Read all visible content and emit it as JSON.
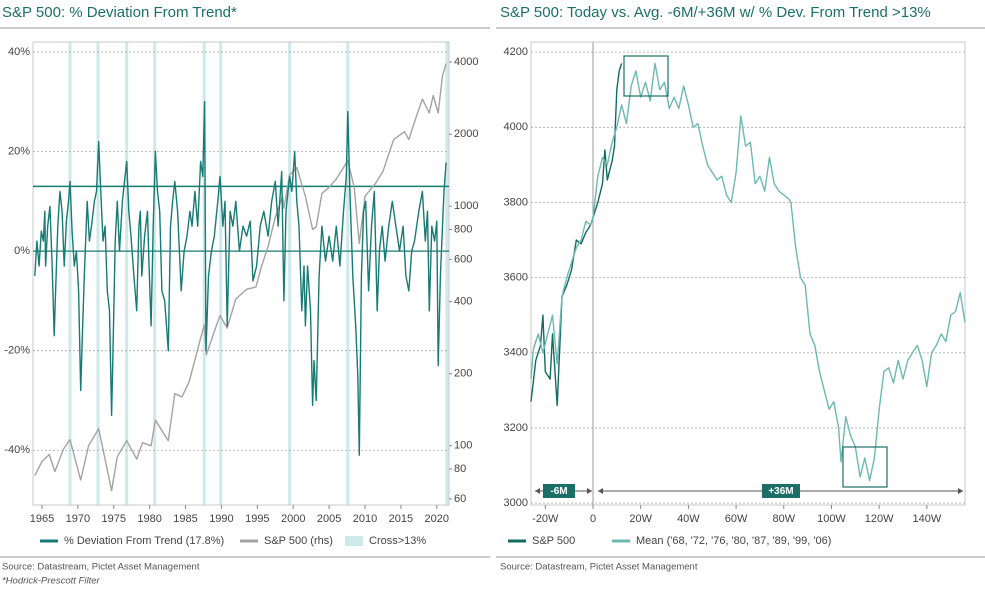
{
  "chart_data": [
    {
      "type": "line",
      "title": "S&P 500: % Deviation From Trend*",
      "xlim": [
        1963.75,
        2021.7
      ],
      "xticks": [
        1965,
        1970,
        1975,
        1980,
        1985,
        1990,
        1995,
        2000,
        2005,
        2010,
        2015,
        2020
      ],
      "ylim": [
        -51,
        42
      ],
      "yticks": [
        {
          "value": -40,
          "label": "-40%"
        },
        {
          "value": -20,
          "label": "-20%"
        },
        {
          "value": 0,
          "label": "0%"
        },
        {
          "value": 20,
          "label": "20%"
        },
        {
          "value": 40,
          "label": "40%"
        }
      ],
      "y2lim": [
        56.6,
        4850
      ],
      "y2log": true,
      "y2ticks": [
        60,
        80,
        100,
        200,
        400,
        600,
        800,
        1000,
        2000,
        4000
      ],
      "grid": true,
      "threshold": 13,
      "bands": {
        "name": "Cross>13%",
        "color": "#cfe9ea",
        "x": [
          1968.9,
          1972.8,
          1976.8,
          1980.7,
          1987.6,
          1989.9,
          1999.5,
          2007.6,
          2021.4
        ]
      },
      "series": [
        {
          "name": "% Deviation From Trend (17.8%)",
          "color": "#167b73",
          "x": [
            1964.0,
            1964.3,
            1964.6,
            1964.9,
            1965.2,
            1965.4,
            1965.5,
            1965.8,
            1966.1,
            1966.4,
            1966.7,
            1966.9,
            1967.2,
            1967.5,
            1967.8,
            1968.1,
            1968.4,
            1968.7,
            1968.9,
            1969.2,
            1969.5,
            1969.8,
            1970.1,
            1970.4,
            1970.6,
            1970.9,
            1971.3,
            1971.6,
            1971.9,
            1972.3,
            1972.6,
            1972.9,
            1973.2,
            1973.5,
            1973.8,
            1974.1,
            1974.4,
            1974.7,
            1974.9,
            1975.2,
            1975.5,
            1975.8,
            1976.2,
            1976.5,
            1976.8,
            1977.1,
            1977.4,
            1977.8,
            1978.2,
            1978.5,
            1978.7,
            1978.9,
            1979.3,
            1979.7,
            1979.9,
            1980.2,
            1980.5,
            1980.8,
            1981.1,
            1981.4,
            1981.7,
            1982.1,
            1982.6,
            1982.9,
            1983.2,
            1983.5,
            1983.9,
            1984.4,
            1984.8,
            1985.2,
            1985.6,
            1985.9,
            1986.3,
            1986.7,
            1987.1,
            1987.4,
            1987.65,
            1987.85,
            1988.2,
            1988.6,
            1989.0,
            1989.5,
            1989.8,
            1990.2,
            1990.5,
            1990.8,
            1991.2,
            1991.6,
            1992.0,
            1992.5,
            1993.0,
            1993.5,
            1994.0,
            1994.4,
            1994.9,
            1995.4,
            1995.9,
            1996.5,
            1997.0,
            1997.5,
            1997.9,
            1998.4,
            1998.7,
            1999.0,
            1999.5,
            1999.8,
            2000.2,
            2000.5,
            2000.8,
            2001.2,
            2001.5,
            2001.7,
            2002.0,
            2002.4,
            2002.7,
            2002.9,
            2003.2,
            2003.6,
            2004.0,
            2004.5,
            2005.0,
            2005.5,
            2006.0,
            2006.5,
            2007.0,
            2007.4,
            2007.6,
            2007.9,
            2008.3,
            2008.7,
            2009.0,
            2009.2,
            2009.5,
            2009.8,
            2010.1,
            2010.5,
            2010.9,
            2011.3,
            2011.7,
            2012.0,
            2012.4,
            2012.8,
            2013.3,
            2013.8,
            2014.3,
            2014.8,
            2015.3,
            2015.7,
            2016.1,
            2016.5,
            2016.9,
            2017.5,
            2018.0,
            2018.4,
            2018.7,
            2018.95,
            2019.3,
            2019.7,
            2020.0,
            2020.2,
            2020.5,
            2020.8,
            2021.0,
            2021.3
          ],
          "values": [
            -5,
            2,
            -3,
            4,
            2,
            8,
            -3,
            5,
            9,
            -2,
            -17,
            -8,
            5,
            12,
            8,
            -3,
            6,
            10,
            14,
            4,
            -3,
            0,
            -8,
            -28,
            -18,
            -5,
            10,
            2,
            5,
            10,
            12,
            22,
            12,
            2,
            5,
            -8,
            -12,
            -33,
            -20,
            2,
            10,
            0,
            10,
            14,
            18,
            8,
            3,
            -5,
            -12,
            5,
            8,
            -5,
            3,
            8,
            -2,
            -15,
            5,
            20,
            12,
            8,
            -8,
            -10,
            -20,
            5,
            10,
            14,
            8,
            -8,
            0,
            3,
            8,
            5,
            12,
            5,
            18,
            15,
            30,
            -20,
            -5,
            0,
            3,
            10,
            15,
            5,
            10,
            -15,
            8,
            5,
            10,
            0,
            5,
            3,
            6,
            -6,
            -3,
            5,
            8,
            3,
            10,
            14,
            5,
            16,
            -10,
            8,
            15,
            12,
            20,
            10,
            5,
            -12,
            -3,
            -15,
            -3,
            -12,
            -31,
            -22,
            -30,
            -5,
            5,
            -2,
            3,
            -2,
            5,
            -3,
            8,
            15,
            28,
            12,
            -5,
            -15,
            -25,
            -41,
            -5,
            8,
            10,
            -8,
            5,
            12,
            -12,
            0,
            5,
            -2,
            5,
            10,
            5,
            0,
            5,
            -5,
            -8,
            0,
            2,
            8,
            12,
            2,
            8,
            -12,
            5,
            2,
            6,
            -23,
            -5,
            5,
            12,
            17.8
          ]
        },
        {
          "name": "S&P 500 (rhs)",
          "color": "#a3a3a3",
          "axis": "y2",
          "x": [
            1964,
            1965,
            1966,
            1966.8,
            1968,
            1968.9,
            1970.4,
            1971.5,
            1972.9,
            1974.7,
            1975.5,
            1976.8,
            1978.2,
            1979,
            1980.2,
            1980.8,
            1982.6,
            1983.5,
            1984.5,
            1985.5,
            1986.5,
            1987.6,
            1987.9,
            1989,
            1989.8,
            1990.8,
            1992,
            1993.5,
            1994.8,
            1995.5,
            1996.5,
            1997.5,
            1998.5,
            1998.7,
            1999.5,
            2000.5,
            2001.7,
            2002.7,
            2003.2,
            2004,
            2005,
            2006,
            2007.6,
            2008.5,
            2009.2,
            2010,
            2011.5,
            2012.5,
            2014,
            2015.5,
            2016.1,
            2017,
            2018,
            2018.95,
            2019.5,
            2020.2,
            2020.8,
            2021.3
          ],
          "values": [
            75,
            86,
            92,
            78,
            97,
            106,
            72,
            100,
            118,
            65,
            90,
            105,
            88,
            103,
            100,
            128,
            105,
            165,
            160,
            185,
            240,
            320,
            240,
            300,
            350,
            310,
            410,
            450,
            460,
            550,
            680,
            900,
            1100,
            980,
            1350,
            1450,
            1100,
            800,
            820,
            1130,
            1200,
            1300,
            1550,
            1200,
            700,
            1100,
            1250,
            1400,
            1900,
            2050,
            1900,
            2300,
            2800,
            2450,
            2900,
            2450,
            3500,
            3950
          ]
        }
      ],
      "source": "Source: Datastream, Pictet Asset Management",
      "note": "*Hodrick-Prescott Filter"
    },
    {
      "type": "line",
      "title": "S&P 500: Today vs. Avg. -6M/+36M w/ % Dev. From Trend >13%",
      "xlim": [
        -26,
        156
      ],
      "xticks": [
        {
          "value": -20,
          "label": "-20W"
        },
        0,
        {
          "value": 20,
          "label": "20W"
        },
        {
          "value": 40,
          "label": "40W"
        },
        {
          "value": 60,
          "label": "60W"
        },
        {
          "value": 80,
          "label": "80W"
        },
        {
          "value": 100,
          "label": "100W"
        },
        {
          "value": 120,
          "label": "120W"
        },
        {
          "value": 140,
          "label": "140W"
        }
      ],
      "ylim": [
        2995,
        4227
      ],
      "yticks": [
        3000,
        3200,
        3400,
        3600,
        3800,
        4000,
        4200
      ],
      "grid": true,
      "annotations": [
        "-6M",
        "+36M"
      ],
      "series": [
        {
          "name": "S&P 500",
          "color": "#126a63",
          "x": [
            -26,
            -24,
            -22,
            -21,
            -20,
            -18,
            -17,
            -15,
            -13,
            -11,
            -9,
            -7,
            -5,
            -3,
            -1,
            0,
            2,
            4,
            5,
            6,
            8,
            9,
            10,
            11,
            12
          ],
          "values": [
            3270,
            3380,
            3420,
            3500,
            3350,
            3330,
            3450,
            3260,
            3550,
            3580,
            3620,
            3700,
            3690,
            3720,
            3740,
            3760,
            3800,
            3850,
            3940,
            3860,
            3910,
            3950,
            4100,
            4150,
            4170
          ]
        },
        {
          "name": "Mean ('68, '72, '76, '80, '87, '89, '99, '06)",
          "color": "#6cb9b2",
          "x": [
            -26,
            -25,
            -23,
            -21,
            -19,
            -17,
            -15,
            -13,
            -11,
            -9,
            -7,
            -5,
            -3,
            -1,
            0,
            2,
            4,
            6,
            8,
            10,
            12,
            14,
            16,
            18,
            20,
            22,
            24,
            26,
            28,
            30,
            32,
            34,
            36,
            38,
            40,
            42,
            44,
            46,
            48,
            50,
            52,
            54,
            56,
            58,
            60,
            62,
            64,
            66,
            68,
            70,
            72,
            74,
            76,
            78,
            80,
            82,
            83,
            85,
            87,
            89,
            91,
            93,
            95,
            97,
            99,
            101,
            103,
            104,
            106,
            108,
            110,
            112,
            114,
            116,
            118,
            120,
            122,
            124,
            126,
            128,
            130,
            132,
            134,
            136,
            138,
            140,
            142,
            144,
            146,
            148,
            150,
            152,
            154,
            156
          ],
          "values": [
            3330,
            3410,
            3450,
            3400,
            3450,
            3500,
            3370,
            3550,
            3600,
            3640,
            3680,
            3700,
            3750,
            3740,
            3760,
            3870,
            3920,
            3900,
            3960,
            4000,
            4060,
            4010,
            4110,
            4150,
            4080,
            4120,
            4070,
            4170,
            4100,
            4120,
            4050,
            4080,
            4050,
            4110,
            4060,
            4000,
            4010,
            3950,
            3900,
            3880,
            3860,
            3870,
            3820,
            3800,
            3880,
            4030,
            3950,
            3960,
            3850,
            3870,
            3830,
            3920,
            3850,
            3830,
            3820,
            3810,
            3800,
            3680,
            3600,
            3580,
            3450,
            3420,
            3350,
            3300,
            3250,
            3270,
            3200,
            3110,
            3230,
            3180,
            3150,
            3070,
            3120,
            3060,
            3120,
            3250,
            3350,
            3360,
            3320,
            3380,
            3330,
            3380,
            3400,
            3420,
            3380,
            3310,
            3400,
            3420,
            3450,
            3430,
            3500,
            3510,
            3560,
            3480
          ]
        }
      ],
      "source": "Source: Datastream, Pictet Asset Management"
    }
  ]
}
